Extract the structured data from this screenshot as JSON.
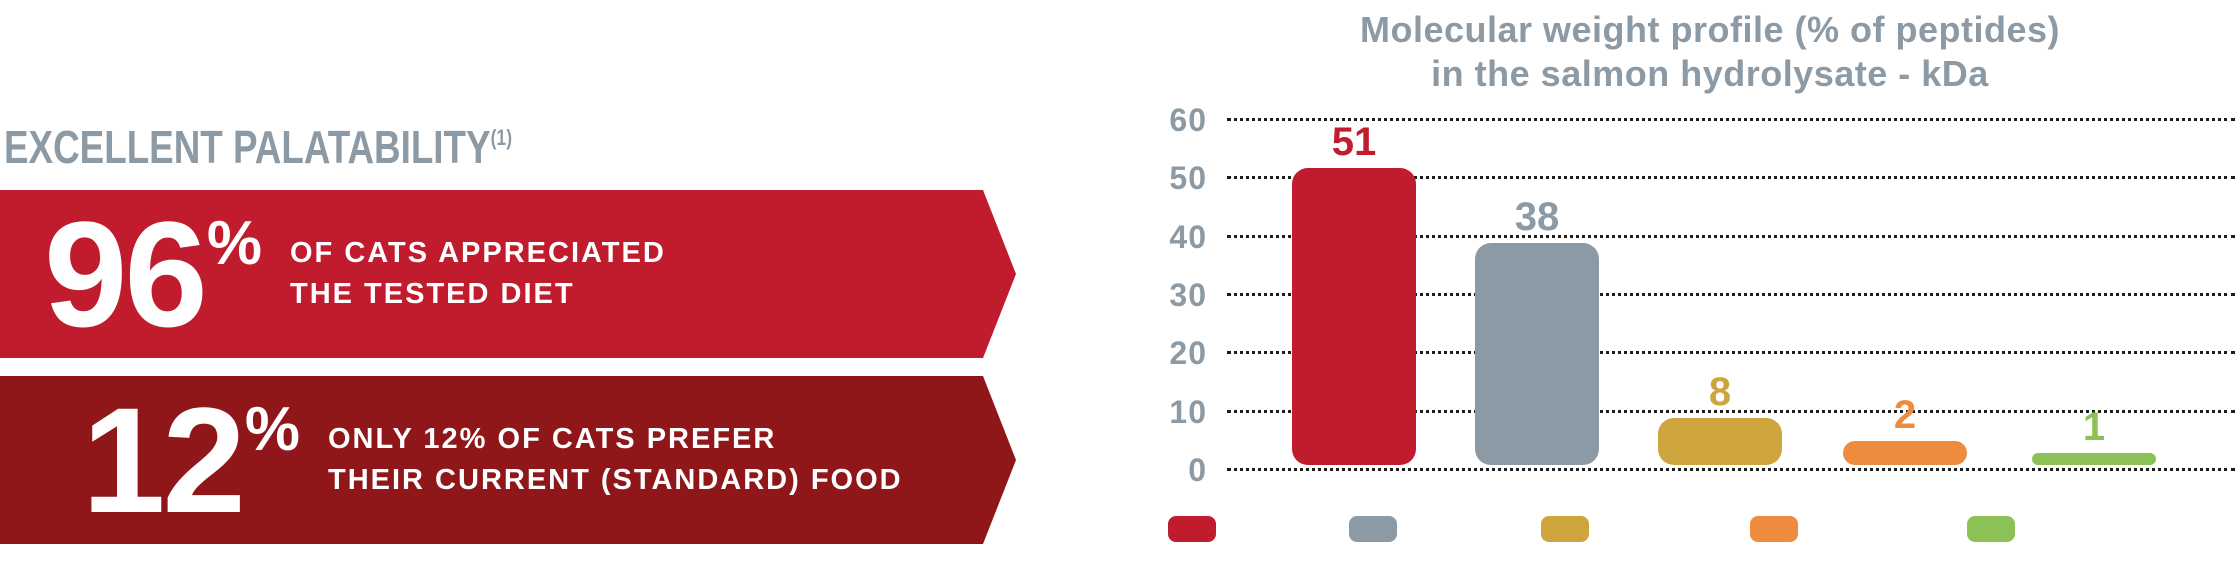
{
  "left": {
    "heading": "EXCELLENT PALATABILITY",
    "heading_superscript": "(1)",
    "banner_96": {
      "value": "96",
      "percent": "%",
      "line1": "OF CATS APPRECIATED",
      "line2": "THE TESTED DIET",
      "bg_color": "#C11B2E"
    },
    "banner_12": {
      "value": "12",
      "percent": "%",
      "line1": "ONLY 12% OF CATS PREFER",
      "line2": "THEIR CURRENT (STANDARD) FOOD",
      "bg_color": "#8F1619"
    }
  },
  "chart": {
    "title_line1": "Molecular weight profile (% of peptides)",
    "title_line2": "in the salmon hydrolysate - kDa"
  },
  "chart_data": {
    "type": "bar",
    "title": "Molecular weight profile (% of peptides) in the salmon hydrolysate - kDa",
    "values": [
      51,
      38,
      8,
      2,
      1
    ],
    "bar_colors": [
      "#C11B2E",
      "#8C9AA5",
      "#CEA53D",
      "#EF8B3E",
      "#8BC155"
    ],
    "value_labels": [
      "51",
      "38",
      "8",
      "2",
      "1"
    ],
    "y_ticks": [
      60,
      50,
      40,
      30,
      20,
      10,
      0
    ],
    "ylim": [
      0,
      60
    ],
    "xlabel": "",
    "ylabel": "",
    "grid": "horizontal dotted",
    "legend": "color swatches below axis (text labels not visible in image)",
    "legend_colors": [
      "#C11B2E",
      "#8C9AA5",
      "#CEA53D",
      "#EF8B3E",
      "#8BC155"
    ],
    "axis_label_color": "#8C9AA5",
    "title_color": "#8C9AA5"
  }
}
